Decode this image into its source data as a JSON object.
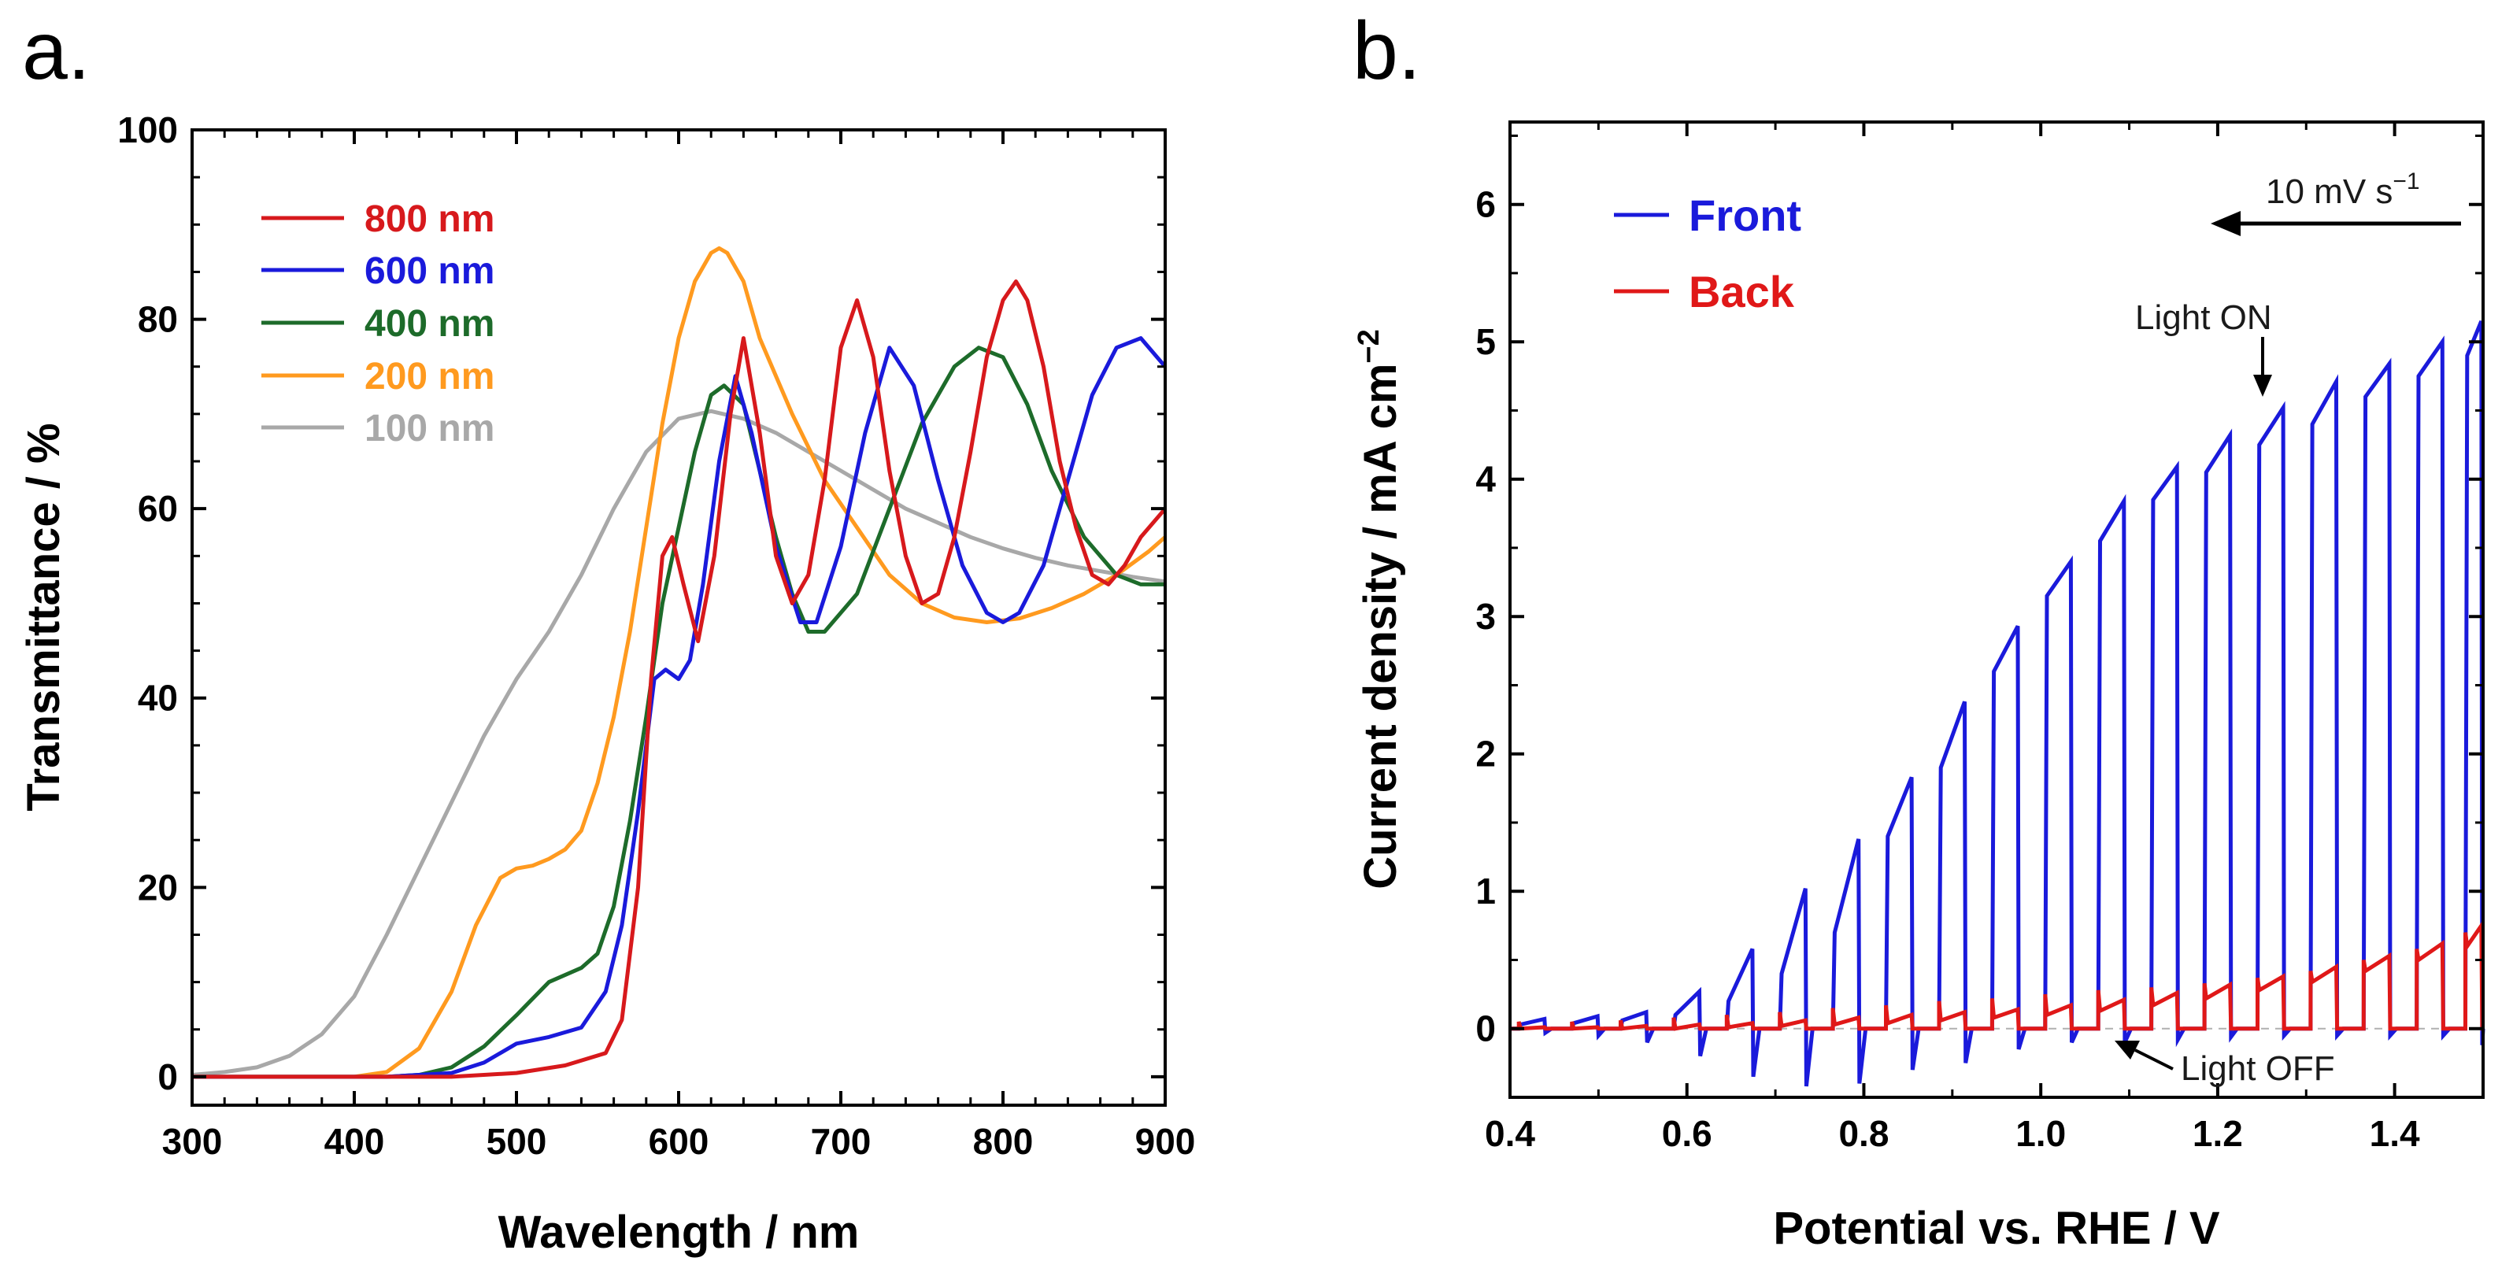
{
  "colors": {
    "s800": "#d7191c",
    "s600": "#1a1adb",
    "s400": "#1d6b2a",
    "s200": "#ff9a1f",
    "s100": "#a8a8a8",
    "front": "#1a1adb",
    "back": "#e01818",
    "axis": "#000000"
  },
  "chart_data": [
    {
      "panel_label": "a.",
      "type": "line",
      "title": "",
      "xlabel": "Wavelength / nm",
      "ylabel": "Transmittance / %",
      "xlim": [
        300,
        900
      ],
      "ylim": [
        -3,
        100
      ],
      "xticks": [
        300,
        400,
        500,
        600,
        700,
        800,
        900
      ],
      "yticks": [
        0,
        20,
        40,
        60,
        80,
        100
      ],
      "xtick_labels": [
        "300",
        "400",
        "500",
        "600",
        "700",
        "800",
        "900"
      ],
      "ytick_labels": [
        "0",
        "20",
        "40",
        "60",
        "80",
        "100"
      ],
      "grid": false,
      "legend_position": "top-left",
      "series": [
        {
          "name": "800 nm",
          "color_key": "s800",
          "x": [
            300,
            420,
            460,
            500,
            530,
            555,
            565,
            575,
            583,
            590,
            596,
            603,
            612,
            622,
            632,
            640,
            650,
            660,
            670,
            680,
            690,
            700,
            710,
            720,
            730,
            740,
            750,
            760,
            770,
            780,
            790,
            800,
            808,
            815,
            825,
            835,
            845,
            855,
            865,
            875,
            885,
            895,
            900
          ],
          "y": [
            0,
            0,
            0,
            0.4,
            1.2,
            2.5,
            6,
            20,
            42,
            55,
            57,
            52,
            46,
            55,
            70,
            78,
            68,
            55,
            50,
            53,
            63,
            77,
            82,
            76,
            64,
            55,
            50,
            51,
            57,
            66,
            76,
            82,
            84,
            82,
            75,
            65,
            58,
            53,
            52,
            54,
            57,
            59,
            60
          ]
        },
        {
          "name": "600 nm",
          "color_key": "s600",
          "x": [
            300,
            420,
            460,
            480,
            500,
            520,
            540,
            555,
            565,
            575,
            585,
            592,
            600,
            607,
            615,
            625,
            635,
            645,
            660,
            675,
            685,
            700,
            715,
            730,
            745,
            760,
            775,
            790,
            800,
            810,
            825,
            840,
            855,
            870,
            885,
            895,
            900
          ],
          "y": [
            0,
            0,
            0.4,
            1.5,
            3.5,
            4.2,
            5.2,
            9,
            16,
            28,
            42,
            43,
            42,
            44,
            52,
            65,
            74,
            68,
            56,
            48,
            48,
            56,
            68,
            77,
            73,
            63,
            54,
            49,
            48,
            49,
            54,
            63,
            72,
            77,
            78,
            76,
            75
          ]
        },
        {
          "name": "400 nm",
          "color_key": "s400",
          "x": [
            300,
            420,
            440,
            460,
            480,
            500,
            520,
            540,
            550,
            560,
            570,
            580,
            590,
            600,
            610,
            620,
            628,
            640,
            650,
            660,
            670,
            680,
            690,
            710,
            730,
            750,
            770,
            785,
            800,
            815,
            830,
            850,
            870,
            885,
            900
          ],
          "y": [
            0,
            0,
            0.2,
            1,
            3.2,
            6.5,
            10,
            11.5,
            13,
            18,
            27,
            38,
            50,
            58,
            66,
            72,
            73,
            71,
            64,
            57,
            51,
            47,
            47,
            51,
            60,
            69,
            75,
            77,
            76,
            71,
            64,
            57,
            53,
            52,
            52
          ]
        },
        {
          "name": "200 nm",
          "color_key": "s200",
          "x": [
            300,
            400,
            420,
            440,
            460,
            475,
            490,
            500,
            510,
            520,
            530,
            540,
            550,
            560,
            570,
            580,
            590,
            600,
            610,
            620,
            625,
            630,
            640,
            650,
            670,
            690,
            710,
            730,
            750,
            770,
            790,
            810,
            830,
            850,
            870,
            890,
            900
          ],
          "y": [
            0,
            0,
            0.5,
            3,
            9,
            16,
            21,
            22,
            22.3,
            23,
            24,
            26,
            31,
            38,
            47,
            58,
            69,
            78,
            84,
            87,
            87.5,
            87,
            84,
            78,
            70,
            63,
            58,
            53,
            50,
            48.5,
            48,
            48.4,
            49.5,
            51,
            53,
            55.5,
            57
          ]
        },
        {
          "name": "100 nm",
          "color_key": "s100",
          "x": [
            300,
            320,
            340,
            360,
            380,
            400,
            420,
            440,
            460,
            480,
            500,
            520,
            540,
            560,
            580,
            600,
            620,
            640,
            660,
            680,
            700,
            720,
            740,
            760,
            780,
            800,
            820,
            840,
            860,
            880,
            900
          ],
          "y": [
            0.2,
            0.5,
            1,
            2.2,
            4.5,
            8.5,
            15,
            22,
            29,
            36,
            42,
            47,
            53,
            60,
            66,
            69.5,
            70.3,
            69.5,
            68,
            66,
            64,
            62,
            60,
            58.5,
            57,
            55.8,
            54.8,
            54,
            53.4,
            52.8,
            52.3
          ]
        }
      ]
    },
    {
      "panel_label": "b.",
      "type": "line",
      "title": "",
      "xlabel": "Potential vs. RHE / V",
      "ylabel": "Current density / mA cm",
      "ylabel_superscript": "−2",
      "xlim": [
        0.4,
        1.5
      ],
      "ylim": [
        -0.5,
        6.6
      ],
      "xticks": [
        0.4,
        0.6,
        0.8,
        1.0,
        1.2,
        1.4
      ],
      "yticks": [
        0,
        1,
        2,
        3,
        4,
        5,
        6
      ],
      "xtick_labels": [
        "0.4",
        "0.6",
        "0.8",
        "1.0",
        "1.2",
        "1.4"
      ],
      "ytick_labels": [
        "0",
        "1",
        "2",
        "3",
        "4",
        "5",
        "6"
      ],
      "grid": false,
      "legend_position": "top-left",
      "chopped_illumination": {
        "transition_potentials_V": [
          0.41,
          0.47,
          0.525,
          0.585,
          0.645,
          0.705,
          0.765,
          0.825,
          0.885,
          0.945,
          1.005,
          1.065,
          1.125,
          1.185,
          1.245,
          1.305,
          1.365,
          1.425,
          1.48
        ],
        "dark_current_mA_cm2": 0
      },
      "series": [
        {
          "name": "Front",
          "color_key": "front",
          "x": [
            0.41,
            0.47,
            0.525,
            0.585,
            0.645,
            0.705,
            0.765,
            0.825,
            0.885,
            0.945,
            1.005,
            1.065,
            1.125,
            1.185,
            1.245,
            1.305,
            1.365,
            1.425,
            1.48
          ],
          "photocurrent_start": [
            0.03,
            0.04,
            0.06,
            0.1,
            0.2,
            0.4,
            0.7,
            1.4,
            1.9,
            2.6,
            3.15,
            3.55,
            3.85,
            4.05,
            4.25,
            4.4,
            4.6,
            4.75,
            4.9
          ],
          "photocurrent_end": [
            0.07,
            0.09,
            0.12,
            0.27,
            0.58,
            1.02,
            1.38,
            1.83,
            2.38,
            2.93,
            3.4,
            3.84,
            4.09,
            4.32,
            4.52,
            4.71,
            4.84,
            5.0,
            5.15
          ],
          "off_dip": [
            -0.03,
            -0.05,
            -0.1,
            -0.2,
            -0.35,
            -0.42,
            -0.4,
            -0.3,
            -0.25,
            -0.15,
            -0.1,
            -0.1,
            -0.08,
            -0.06,
            -0.05,
            -0.05,
            -0.05,
            -0.05,
            -0.12
          ]
        },
        {
          "name": "Back",
          "color_key": "back",
          "x": [
            0.41,
            0.47,
            0.525,
            0.585,
            0.645,
            0.705,
            0.765,
            0.825,
            0.885,
            0.945,
            1.005,
            1.065,
            1.125,
            1.185,
            1.245,
            1.305,
            1.365,
            1.425,
            1.48
          ],
          "photocurrent_start": [
            0.0,
            0.0,
            0.0,
            0.0,
            0.01,
            0.02,
            0.03,
            0.04,
            0.06,
            0.08,
            0.1,
            0.13,
            0.17,
            0.22,
            0.28,
            0.34,
            0.42,
            0.5,
            0.6
          ],
          "photocurrent_end": [
            0.01,
            0.01,
            0.02,
            0.03,
            0.04,
            0.06,
            0.08,
            0.1,
            0.12,
            0.14,
            0.17,
            0.21,
            0.26,
            0.32,
            0.38,
            0.45,
            0.53,
            0.62,
            0.75
          ],
          "spike": [
            0.05,
            0.05,
            0.06,
            0.08,
            0.1,
            0.12,
            0.15,
            0.17,
            0.2,
            0.22,
            0.25,
            0.28,
            0.3,
            0.33,
            0.37,
            0.42,
            0.5,
            0.58,
            0.7
          ]
        }
      ],
      "annotations": {
        "scan_rate": "10 mV s",
        "scan_rate_superscript": "−1",
        "light_on": "Light ON",
        "light_off": "Light OFF"
      }
    }
  ]
}
